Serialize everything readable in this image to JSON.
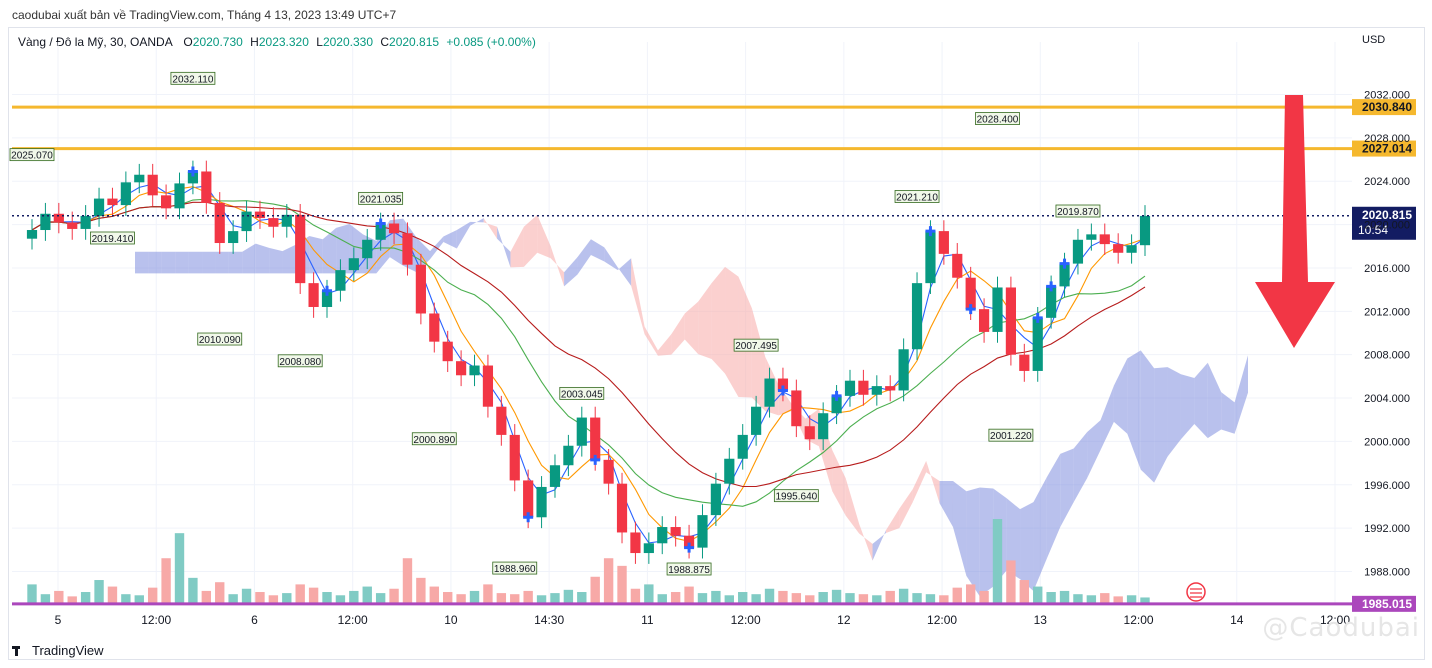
{
  "header": {
    "published": "caodubai xuất bản về TradingView.com, Tháng 4 13, 2023 13:49 UTC+7"
  },
  "legend": {
    "symbol": "Vàng / Đô la Mỹ, 30, OANDA",
    "open_label": "O",
    "open": "2020.730",
    "high_label": "H",
    "high": "2023.320",
    "low_label": "L",
    "low": "2020.330",
    "close_label": "C",
    "close": "2020.815",
    "change": "+0.085 (+0.00%)"
  },
  "currency": "USD",
  "brand": "TradingView",
  "watermark": "@Caodubai",
  "colors": {
    "up": "#089981",
    "down": "#f23645",
    "cloud_bull": "#7f8ede",
    "cloud_bear": "#f7a9a7",
    "level": "#f5b82e",
    "purple": "#ab47bc",
    "arrow": "#f23645",
    "marker": "#2962ff",
    "last_price": "#131c62"
  },
  "chart_data": {
    "type": "candlestick",
    "symbol": "XAUUSD",
    "timeframe": "30",
    "ylim": [
      1985.0,
      2035.0
    ],
    "y_ticks": [
      "1988.000",
      "1992.000",
      "1996.000",
      "2000.000",
      "2004.000",
      "2008.000",
      "2012.000",
      "2016.000",
      "2020.000",
      "2024.000",
      "2028.000",
      "2032.000"
    ],
    "x_ticks": [
      "5",
      "12:00",
      "6",
      "12:00",
      "10",
      "14:30",
      "11",
      "12:00",
      "12",
      "12:00",
      "13",
      "12:00",
      "14",
      "12:00"
    ],
    "levels": [
      {
        "label": "2030.840",
        "value": 2030.84,
        "color": "#f5b82e"
      },
      {
        "label": "2027.014",
        "value": 2027.014,
        "color": "#f5b82e"
      },
      {
        "label": "1985.015",
        "value": 1985.015,
        "color": "#ab47bc"
      }
    ],
    "last_price": {
      "label": "2020.815",
      "value": 2020.815,
      "countdown": "10:54"
    },
    "price_labels": [
      {
        "text": "2032.110",
        "value": 2032.11,
        "bar": 12
      },
      {
        "text": "2025.070",
        "value": 2025.07,
        "bar": 0
      },
      {
        "text": "2019.410",
        "value": 2019.41,
        "bar": 6
      },
      {
        "text": "2010.090",
        "value": 2010.09,
        "bar": 14
      },
      {
        "text": "2008.080",
        "value": 2008.08,
        "bar": 20
      },
      {
        "text": "2021.035",
        "value": 2021.035,
        "bar": 26
      },
      {
        "text": "2000.890",
        "value": 2000.89,
        "bar": 30
      },
      {
        "text": "1988.960",
        "value": 1988.96,
        "bar": 36
      },
      {
        "text": "2003.045",
        "value": 2003.045,
        "bar": 41
      },
      {
        "text": "1988.875",
        "value": 1988.875,
        "bar": 49
      },
      {
        "text": "2007.495",
        "value": 2007.495,
        "bar": 54
      },
      {
        "text": "1995.640",
        "value": 1995.64,
        "bar": 57
      },
      {
        "text": "2021.210",
        "value": 2021.21,
        "bar": 66
      },
      {
        "text": "2028.400",
        "value": 2028.4,
        "bar": 72
      },
      {
        "text": "2001.220",
        "value": 2001.22,
        "bar": 73
      },
      {
        "text": "2019.870",
        "value": 2019.87,
        "bar": 78
      }
    ],
    "closes": [
      2019.5,
      2021.0,
      2020.2,
      2019.6,
      2020.8,
      2022.4,
      2021.8,
      2023.9,
      2024.6,
      2022.7,
      2021.5,
      2023.8,
      2024.9,
      2022.0,
      2018.3,
      2019.4,
      2021.2,
      2020.6,
      2019.8,
      2020.9,
      2014.6,
      2012.4,
      2013.9,
      2015.8,
      2016.9,
      2018.6,
      2020.1,
      2019.2,
      2016.3,
      2011.8,
      2009.2,
      2007.4,
      2006.1,
      2007.0,
      2003.2,
      2000.6,
      1996.4,
      1993.0,
      1995.8,
      1997.8,
      1999.6,
      2002.2,
      1998.3,
      1996.1,
      1991.6,
      1989.7,
      1990.6,
      1992.1,
      1991.3,
      1990.2,
      1993.2,
      1996.1,
      1998.4,
      2000.6,
      2003.2,
      2005.8,
      2004.7,
      2001.4,
      2000.2,
      2002.6,
      2004.2,
      2005.6,
      2004.3,
      2005.1,
      2004.7,
      2008.5,
      2014.6,
      2019.4,
      2017.3,
      2015.1,
      2012.2,
      2010.1,
      2014.2,
      2008.0,
      2006.5,
      2011.4,
      2014.3,
      2016.4,
      2018.6,
      2019.1,
      2018.2,
      2017.4,
      2018.1,
      2020.8
    ],
    "volumes": [
      18,
      9,
      12,
      7,
      11,
      22,
      16,
      9,
      8,
      15,
      42,
      65,
      24,
      12,
      20,
      9,
      14,
      11,
      8,
      10,
      18,
      15,
      11,
      8,
      12,
      16,
      10,
      14,
      42,
      24,
      16,
      11,
      9,
      12,
      18,
      10,
      9,
      12,
      8,
      10,
      13,
      11,
      25,
      42,
      35,
      14,
      18,
      9,
      11,
      16,
      10,
      12,
      8,
      11,
      9,
      14,
      12,
      10,
      8,
      11,
      13,
      10,
      9,
      8,
      12,
      14,
      10,
      9,
      8,
      15,
      18,
      12,
      78,
      40,
      22,
      16,
      11,
      12,
      9,
      8,
      10,
      7,
      8,
      6
    ]
  }
}
